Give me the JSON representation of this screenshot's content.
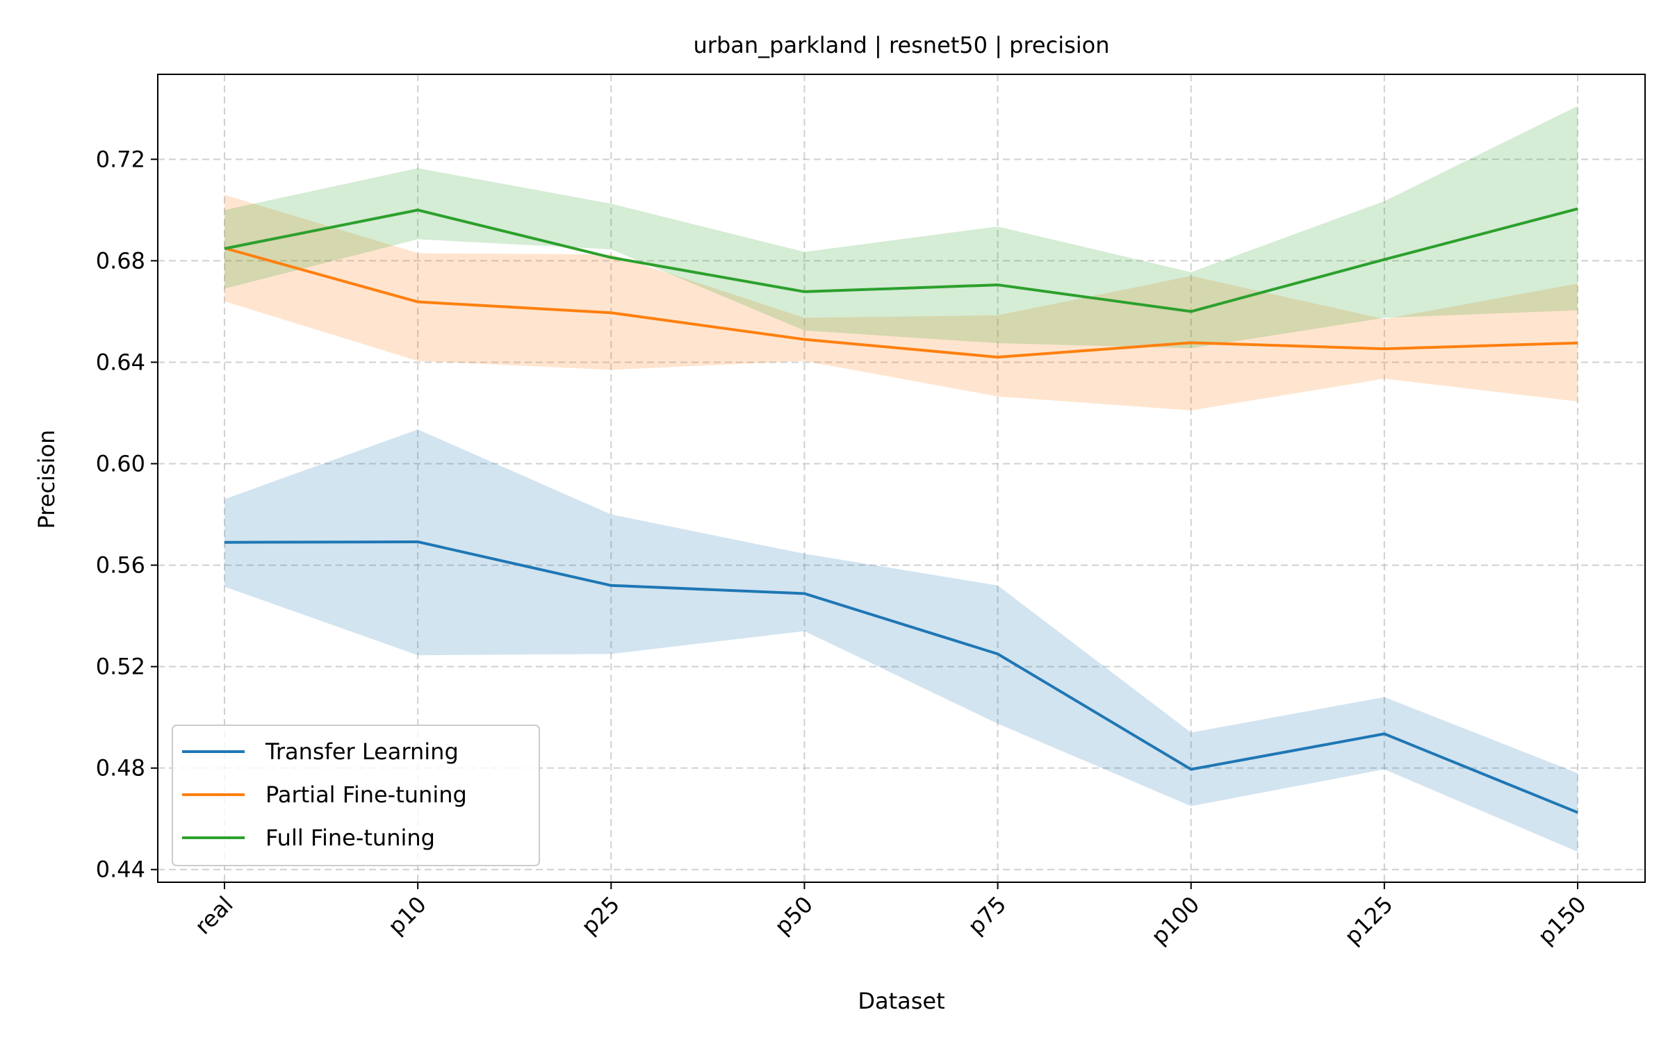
{
  "chart_data": {
    "type": "line",
    "title": "urban_parkland | resnet50 | precision",
    "xlabel": "Dataset",
    "ylabel": "Precision",
    "categories": [
      "real",
      "p10",
      "p25",
      "p50",
      "p75",
      "p100",
      "p125",
      "p150"
    ],
    "ylim": [
      0.435,
      0.7535
    ],
    "yticks": [
      0.44,
      0.48,
      0.52,
      0.56,
      0.6,
      0.64,
      0.68,
      0.72
    ],
    "ytick_labels": [
      "0.44",
      "0.48",
      "0.52",
      "0.56",
      "0.60",
      "0.64",
      "0.68",
      "0.72"
    ],
    "grid": true,
    "legend_position": "lower-left",
    "series": [
      {
        "name": "Transfer Learning",
        "color": "#1f77b4",
        "values": [
          0.569,
          0.5692,
          0.552,
          0.5488,
          0.525,
          0.4795,
          0.4935,
          0.4625
        ],
        "band_upper": [
          0.586,
          0.6135,
          0.58,
          0.5645,
          0.552,
          0.494,
          0.508,
          0.478
        ],
        "band_lower": [
          0.5515,
          0.5245,
          0.525,
          0.534,
          0.4975,
          0.465,
          0.4795,
          0.447
        ]
      },
      {
        "name": "Partial Fine-tuning",
        "color": "#ff7f0e",
        "values": [
          0.685,
          0.6638,
          0.6595,
          0.649,
          0.642,
          0.6477,
          0.6453,
          0.6476
        ],
        "band_upper": [
          0.706,
          0.683,
          0.6825,
          0.6575,
          0.6585,
          0.674,
          0.657,
          0.671
        ],
        "band_lower": [
          0.664,
          0.6405,
          0.637,
          0.6405,
          0.6265,
          0.621,
          0.6335,
          0.6245
        ]
      },
      {
        "name": "Full Fine-tuning",
        "color": "#2ca02c",
        "values": [
          0.6848,
          0.7,
          0.6813,
          0.6678,
          0.6705,
          0.66,
          0.6805,
          0.7005
        ],
        "band_upper": [
          0.7,
          0.7165,
          0.7025,
          0.6835,
          0.6935,
          0.6755,
          0.7035,
          0.741
        ],
        "band_lower": [
          0.669,
          0.6885,
          0.6845,
          0.6525,
          0.6475,
          0.6455,
          0.6575,
          0.6605
        ]
      }
    ]
  }
}
